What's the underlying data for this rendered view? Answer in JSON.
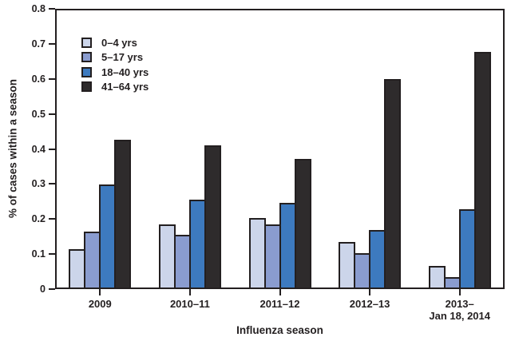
{
  "figure": {
    "background_color": "#ffffff",
    "axis_color": "#231f20",
    "text_color": "#231f20"
  },
  "chart_data": {
    "type": "bar",
    "title": "",
    "xlabel": "Influenza season",
    "ylabel": "% of cases within a season",
    "ylim": [
      0,
      0.8
    ],
    "ytick_step": 0.1,
    "ytick_labels": [
      "0",
      "0.1",
      "0.2",
      "0.3",
      "0.4",
      "0.5",
      "0.6",
      "0.7",
      "0.8"
    ],
    "categories": [
      "2009",
      "2010–11",
      "2011–12",
      "2012–13",
      "2013– Jan 18, 2014"
    ],
    "category_lines": [
      [
        "2009"
      ],
      [
        "2010–11"
      ],
      [
        "2011–12"
      ],
      [
        "2012–13"
      ],
      [
        "2013–",
        "Jan 18, 2014"
      ]
    ],
    "grid": false,
    "legend_position": "upper-left-inside",
    "series": [
      {
        "name": "0–4 yrs",
        "color": "#ccd5ea",
        "values": [
          0.115,
          0.185,
          0.203,
          0.135,
          0.065
        ]
      },
      {
        "name": "5–17 yrs",
        "color": "#8a9ccf",
        "values": [
          0.165,
          0.155,
          0.185,
          0.102,
          0.035
        ]
      },
      {
        "name": "18–40 yrs",
        "color": "#3d7abf",
        "values": [
          0.298,
          0.256,
          0.246,
          0.168,
          0.228
        ]
      },
      {
        "name": "41–64 yrs",
        "color": "#2e2b2c",
        "values": [
          0.427,
          0.411,
          0.372,
          0.6,
          0.676
        ]
      }
    ]
  }
}
